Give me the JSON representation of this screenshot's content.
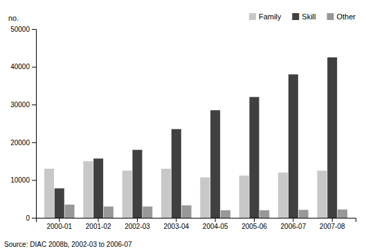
{
  "chart_data": {
    "type": "bar",
    "ylabel": "no.",
    "categories": [
      "2000-01",
      "2001-02",
      "2002-03",
      "2003-04",
      "2004-05",
      "2005-06",
      "2006-07",
      "2007-08"
    ],
    "series": [
      {
        "name": "Family",
        "color": "#c8c8c8",
        "values": [
          13000,
          15000,
          12500,
          13000,
          10700,
          11200,
          12000,
          12500
        ]
      },
      {
        "name": "Skill",
        "color": "#404040",
        "values": [
          7800,
          15700,
          18000,
          23500,
          28500,
          32000,
          38000,
          42500
        ]
      },
      {
        "name": "Other",
        "color": "#989898",
        "values": [
          3500,
          3000,
          3000,
          3300,
          2000,
          2000,
          2100,
          2200
        ]
      }
    ],
    "ylim": [
      0,
      50000
    ],
    "yticks": [
      0,
      10000,
      20000,
      30000,
      40000,
      50000
    ],
    "legend": "top",
    "annotations": [
      "Source: DIAC 2008b, 2002-03 to 2006-07"
    ]
  }
}
